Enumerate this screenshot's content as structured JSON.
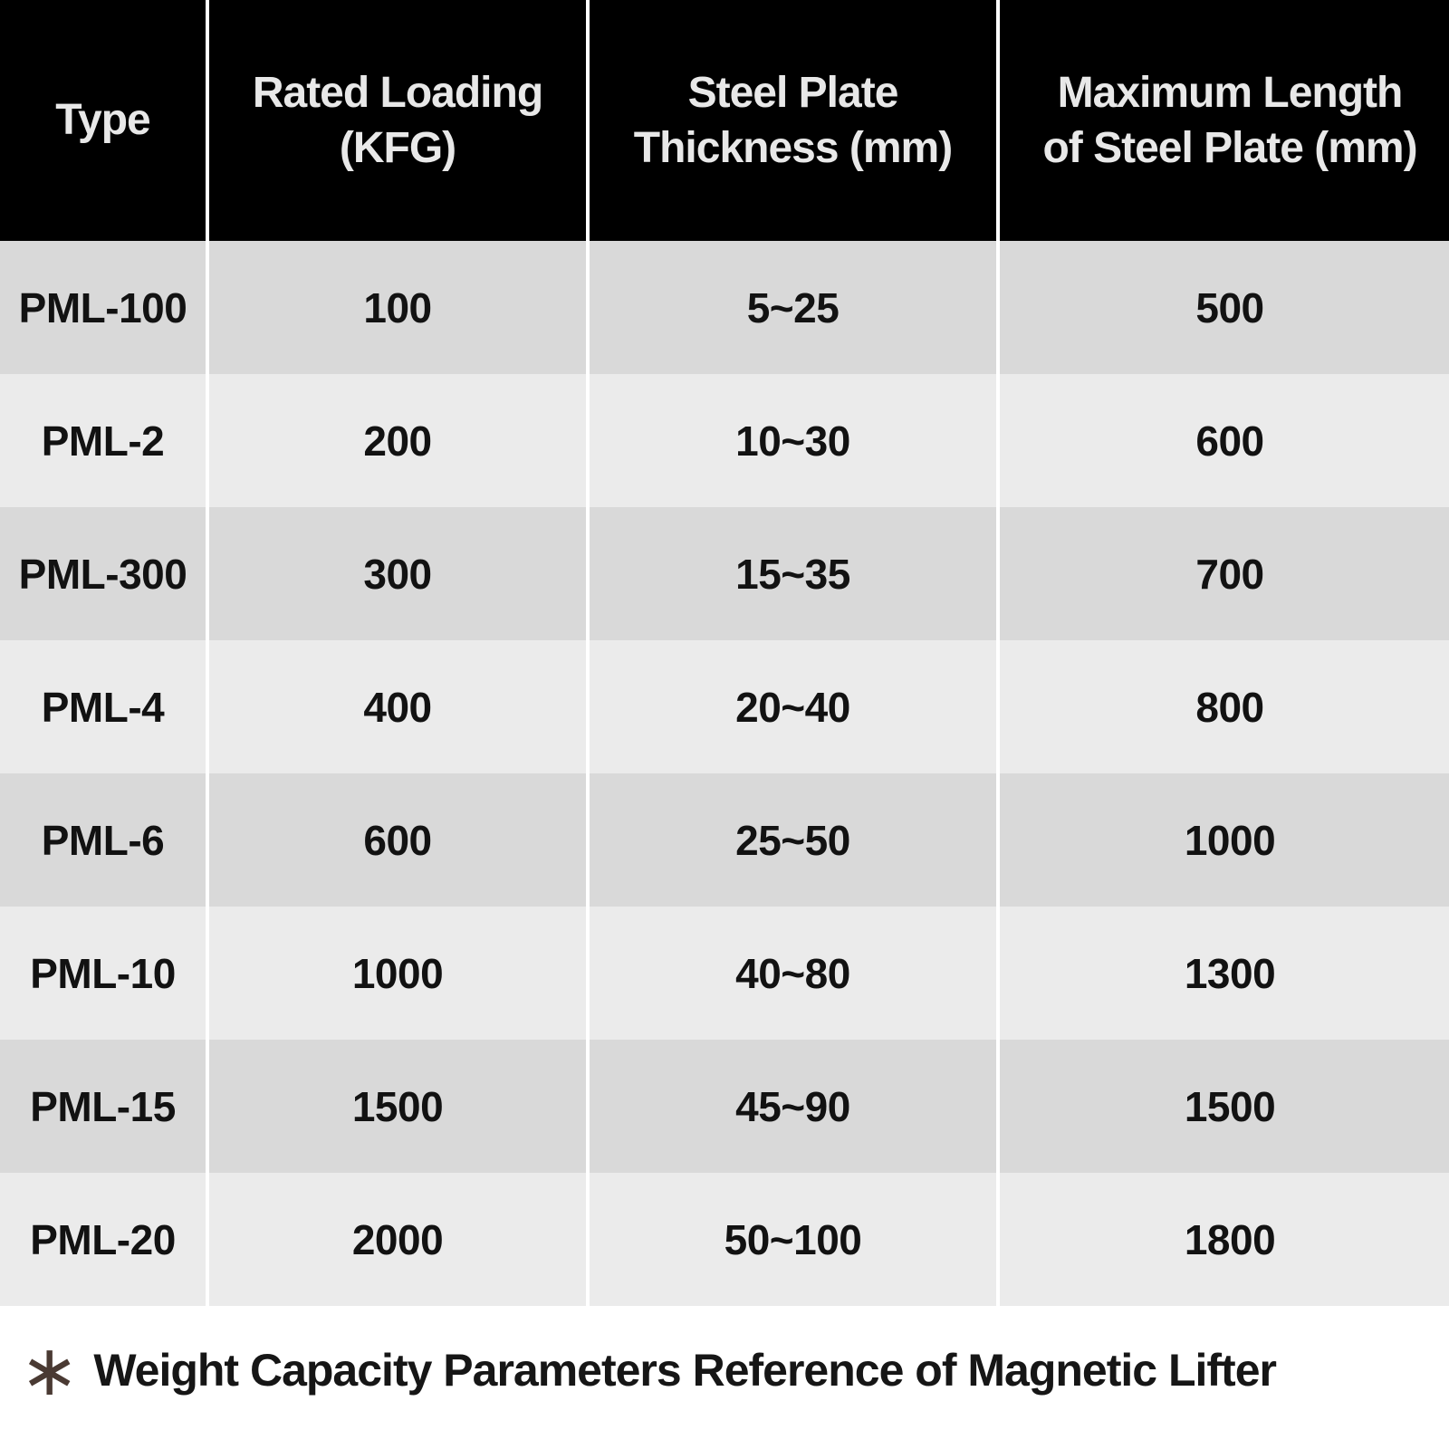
{
  "table": {
    "headers": [
      "Type",
      "Rated Loading\n(KFG)",
      "Steel Plate\nThickness (mm)",
      "Maximum Length\nof Steel Plate (mm)"
    ],
    "rows": [
      {
        "type": "PML-100",
        "rated_loading_kfg": "100",
        "steel_plate_thickness_mm": "5~25",
        "max_length_mm": "500"
      },
      {
        "type": "PML-2",
        "rated_loading_kfg": "200",
        "steel_plate_thickness_mm": "10~30",
        "max_length_mm": "600"
      },
      {
        "type": "PML-300",
        "rated_loading_kfg": "300",
        "steel_plate_thickness_mm": "15~35",
        "max_length_mm": "700"
      },
      {
        "type": "PML-4",
        "rated_loading_kfg": "400",
        "steel_plate_thickness_mm": "20~40",
        "max_length_mm": "800"
      },
      {
        "type": "PML-6",
        "rated_loading_kfg": "600",
        "steel_plate_thickness_mm": "25~50",
        "max_length_mm": "1000"
      },
      {
        "type": "PML-10",
        "rated_loading_kfg": "1000",
        "steel_plate_thickness_mm": "40~80",
        "max_length_mm": "1300"
      },
      {
        "type": "PML-15",
        "rated_loading_kfg": "1500",
        "steel_plate_thickness_mm": "45~90",
        "max_length_mm": "1500"
      },
      {
        "type": "PML-20",
        "rated_loading_kfg": "2000",
        "steel_plate_thickness_mm": "50~100",
        "max_length_mm": "1800"
      }
    ]
  },
  "footnote": {
    "symbol": "∗",
    "text": "Weight Capacity Parameters Reference of Magnetic Lifter"
  },
  "colors": {
    "header_bg": "#000000",
    "header_text": "#e8e8e8",
    "row_dark": "#d9d9d9",
    "row_light": "#ebebeb",
    "separator": "#ffffff",
    "cell_text": "#121212",
    "asterisk": "#4a3a33"
  }
}
